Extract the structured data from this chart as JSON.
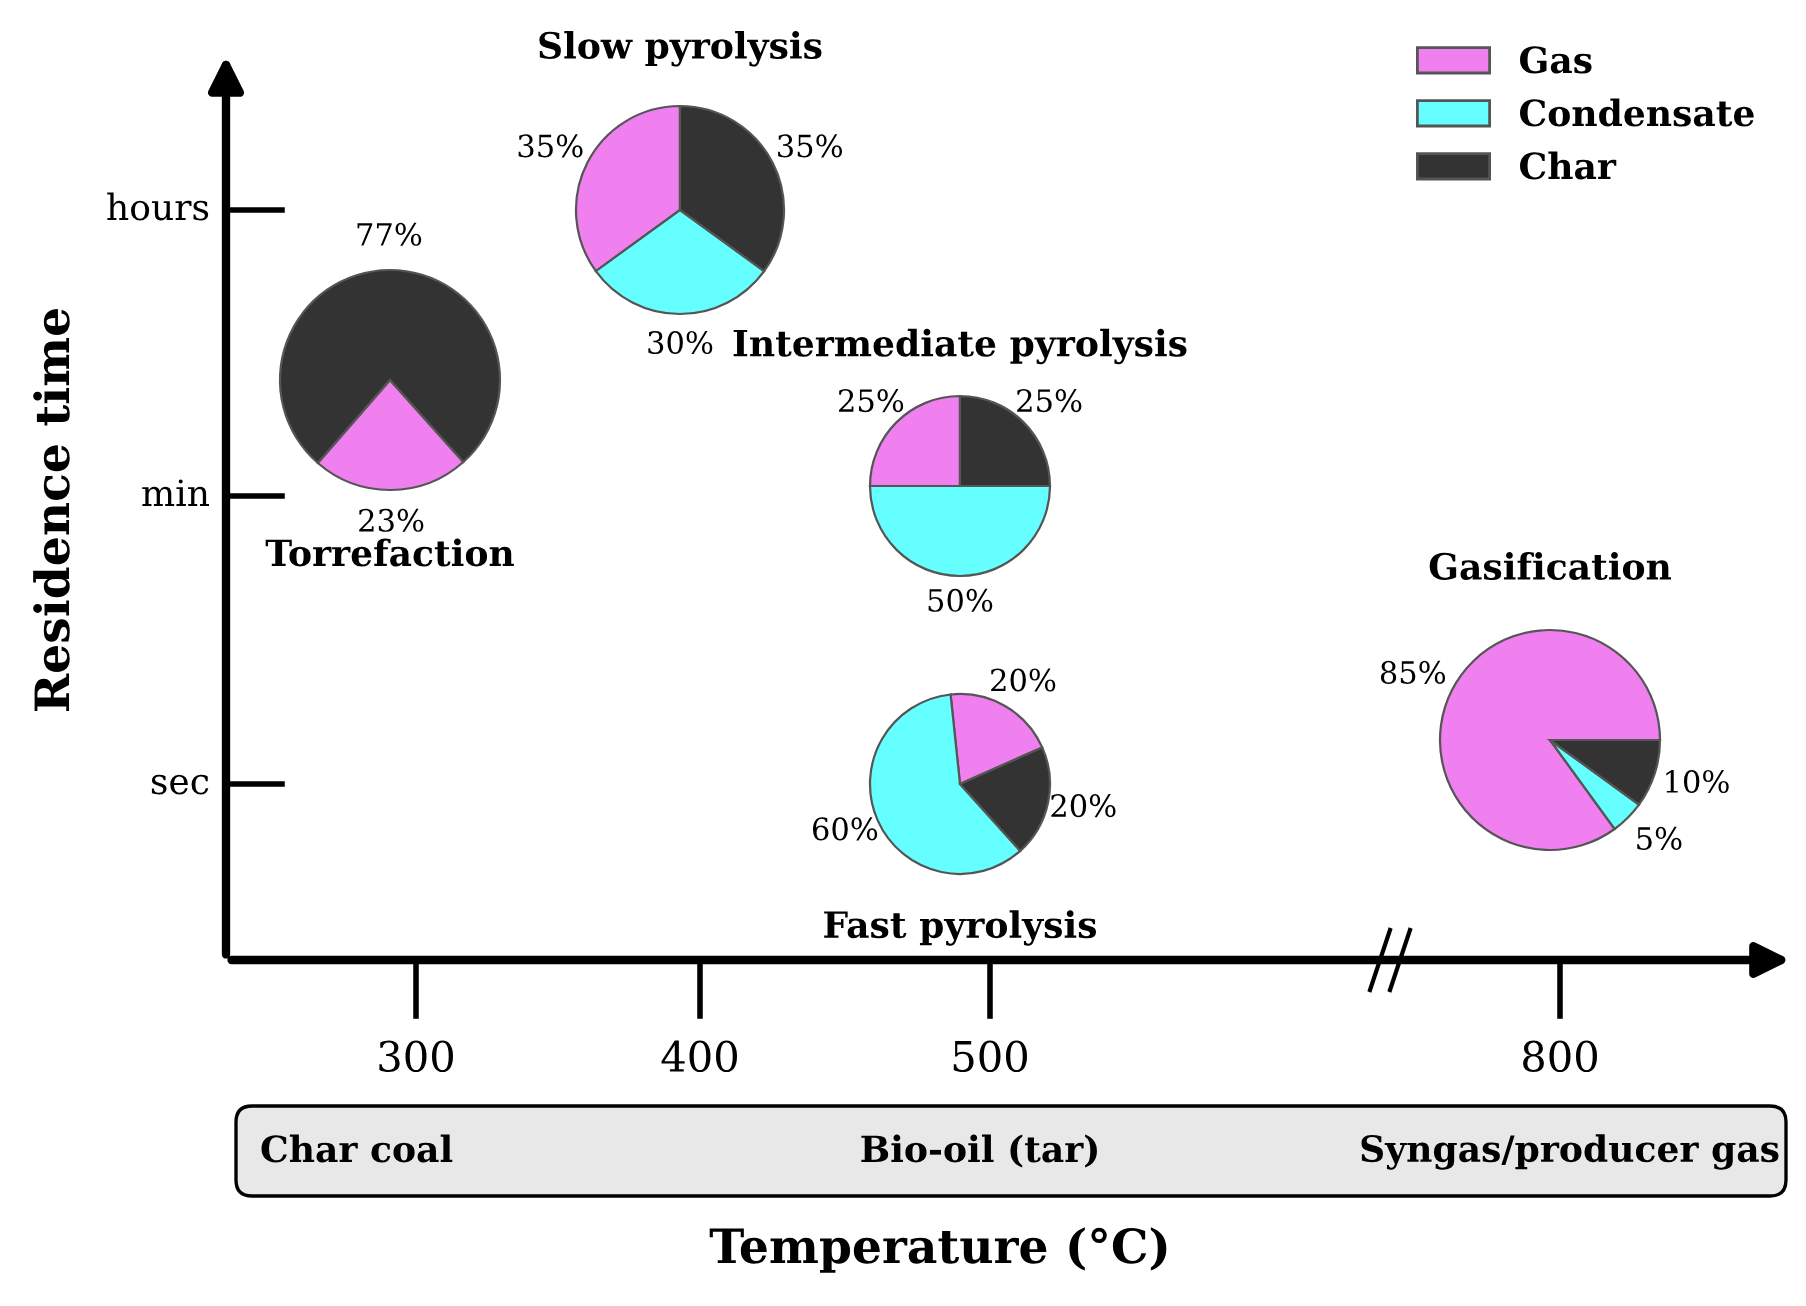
{
  "chart_data": [
    {
      "type": "other",
      "xlabel": "Temperature (°C)",
      "ylabel": "Residence time",
      "annotations": [
        "300",
        "400",
        "500",
        "800",
        "hours",
        "min",
        "sec",
        "Char coal",
        "Bio-oil (tar)",
        "Syngas/producer gas"
      ]
    },
    {
      "type": "pie",
      "title": "Slow pyrolysis",
      "categories": [
        "Gas",
        "Condensate",
        "Char"
      ],
      "values": [
        35,
        30,
        35
      ],
      "colors": [
        "#f080f0",
        "#66ffff",
        "#333333"
      ],
      "value_labels": [
        "35%",
        "30%",
        "35%"
      ],
      "legend": "top right"
    },
    {
      "type": "pie",
      "title": "Torrefaction",
      "categories": [
        null,
        null
      ],
      "values": [
        23,
        77
      ],
      "colors": [
        "#f080f0",
        "#333333"
      ],
      "value_labels": [
        "23%",
        "77%"
      ]
    },
    {
      "type": "pie",
      "title": "Intermediate pyrolysis",
      "categories": [
        null,
        null,
        null
      ],
      "values": [
        25,
        50,
        25
      ],
      "colors": [
        "#f080f0",
        "#66ffff",
        "#333333"
      ],
      "value_labels": [
        "25%",
        "50%",
        "25%"
      ]
    },
    {
      "type": "pie",
      "title": "Fast pyrolysis",
      "categories": [
        null,
        null,
        null
      ],
      "values": [
        20,
        60,
        20
      ],
      "colors": [
        "#f080f0",
        "#66ffff",
        "#333333"
      ],
      "value_labels": [
        "20%",
        "60%",
        "20%"
      ]
    },
    {
      "type": "pie",
      "title": "Gasification",
      "categories": [
        null,
        null,
        null
      ],
      "values": [
        85,
        5,
        10
      ],
      "colors": [
        "#f080f0",
        "#66ffff",
        "#333333"
      ],
      "value_labels": [
        "85%",
        "5%",
        "10%"
      ]
    }
  ]
}
